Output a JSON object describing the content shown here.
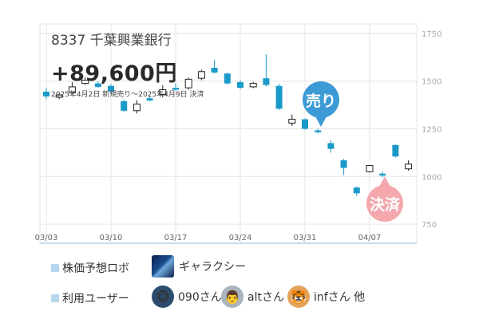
{
  "stock": {
    "title": "8337 千葉興業銀行",
    "profit": "+89,600円",
    "period": "2025年4月2日 新規売り〜2025年4月9日 決済"
  },
  "markers": {
    "sell": "売り",
    "settle": "決済"
  },
  "legend": {
    "robot_label": "株価予想ロボ",
    "robot_name": "ギャラクシー",
    "users_label": "利用ユーザー",
    "users": [
      "090さん",
      "altさん",
      "infさん 他"
    ]
  },
  "colors": {
    "down": "#1a9ac9",
    "up_border": "#222222",
    "grid": "#e6e6e6",
    "axis_text": "#aaaaaa"
  },
  "chart_data": {
    "type": "candlestick",
    "x_ticks": [
      "03/03",
      "03/10",
      "03/17",
      "03/24",
      "03/31",
      "04/07"
    ],
    "y_ticks": [
      750,
      1000,
      1250,
      1500,
      1750
    ],
    "ylim": [
      650,
      1800
    ],
    "candles": [
      {
        "open": 1445,
        "close": 1420,
        "high": 1465,
        "low": 1405,
        "dir": "down"
      },
      {
        "open": 1415,
        "close": 1428,
        "high": 1440,
        "low": 1405,
        "dir": "up"
      },
      {
        "open": 1440,
        "close": 1470,
        "high": 1495,
        "low": 1430,
        "dir": "up"
      },
      {
        "open": 1488,
        "close": 1505,
        "high": 1520,
        "low": 1480,
        "dir": "up"
      },
      {
        "open": 1488,
        "close": 1470,
        "high": 1498,
        "low": 1465,
        "dir": "down"
      },
      {
        "open": 1475,
        "close": 1445,
        "high": 1485,
        "low": 1438,
        "dir": "down"
      },
      {
        "open": 1395,
        "close": 1345,
        "high": 1402,
        "low": 1340,
        "dir": "down"
      },
      {
        "open": 1345,
        "close": 1380,
        "high": 1400,
        "low": 1330,
        "dir": "up"
      },
      {
        "open": 1410,
        "close": 1398,
        "high": 1420,
        "low": 1395,
        "dir": "down"
      },
      {
        "open": 1430,
        "close": 1455,
        "high": 1478,
        "low": 1415,
        "dir": "up"
      },
      {
        "open": 1465,
        "close": 1455,
        "high": 1490,
        "low": 1450,
        "dir": "down"
      },
      {
        "open": 1465,
        "close": 1510,
        "high": 1518,
        "low": 1455,
        "dir": "up"
      },
      {
        "open": 1515,
        "close": 1550,
        "high": 1560,
        "low": 1505,
        "dir": "up"
      },
      {
        "open": 1570,
        "close": 1545,
        "high": 1612,
        "low": 1540,
        "dir": "down"
      },
      {
        "open": 1540,
        "close": 1488,
        "high": 1545,
        "low": 1482,
        "dir": "down"
      },
      {
        "open": 1495,
        "close": 1465,
        "high": 1505,
        "low": 1458,
        "dir": "down"
      },
      {
        "open": 1470,
        "close": 1488,
        "high": 1496,
        "low": 1463,
        "dir": "up"
      },
      {
        "open": 1515,
        "close": 1480,
        "high": 1640,
        "low": 1472,
        "dir": "down"
      },
      {
        "open": 1475,
        "close": 1355,
        "high": 1485,
        "low": 1350,
        "dir": "down"
      },
      {
        "open": 1280,
        "close": 1300,
        "high": 1325,
        "low": 1265,
        "dir": "up"
      },
      {
        "open": 1300,
        "close": 1250,
        "high": 1305,
        "low": 1245,
        "dir": "down"
      },
      {
        "open": 1242,
        "close": 1232,
        "high": 1250,
        "low": 1225,
        "dir": "down"
      },
      {
        "open": 1175,
        "close": 1145,
        "high": 1190,
        "low": 1125,
        "dir": "down"
      },
      {
        "open": 1085,
        "close": 1045,
        "high": 1092,
        "low": 1008,
        "dir": "down"
      },
      {
        "open": 942,
        "close": 912,
        "high": 948,
        "low": 898,
        "dir": "down"
      },
      {
        "open": 1025,
        "close": 1058,
        "high": 1060,
        "low": 1020,
        "dir": "up"
      },
      {
        "open": 1015,
        "close": 1005,
        "high": 1025,
        "low": 995,
        "dir": "down"
      },
      {
        "open": 1165,
        "close": 1105,
        "high": 1168,
        "low": 1100,
        "dir": "down"
      },
      {
        "open": 1040,
        "close": 1065,
        "high": 1085,
        "low": 1030,
        "dir": "up"
      }
    ],
    "candle_x_index": [
      0,
      1,
      2,
      3,
      4,
      5,
      6,
      7,
      8,
      9,
      10,
      11,
      12,
      13,
      14,
      15,
      16,
      17,
      18,
      19,
      20,
      21,
      22,
      23,
      24,
      25,
      26,
      27,
      28
    ],
    "tick_positions": [
      0,
      5,
      10,
      15,
      20,
      25
    ]
  }
}
